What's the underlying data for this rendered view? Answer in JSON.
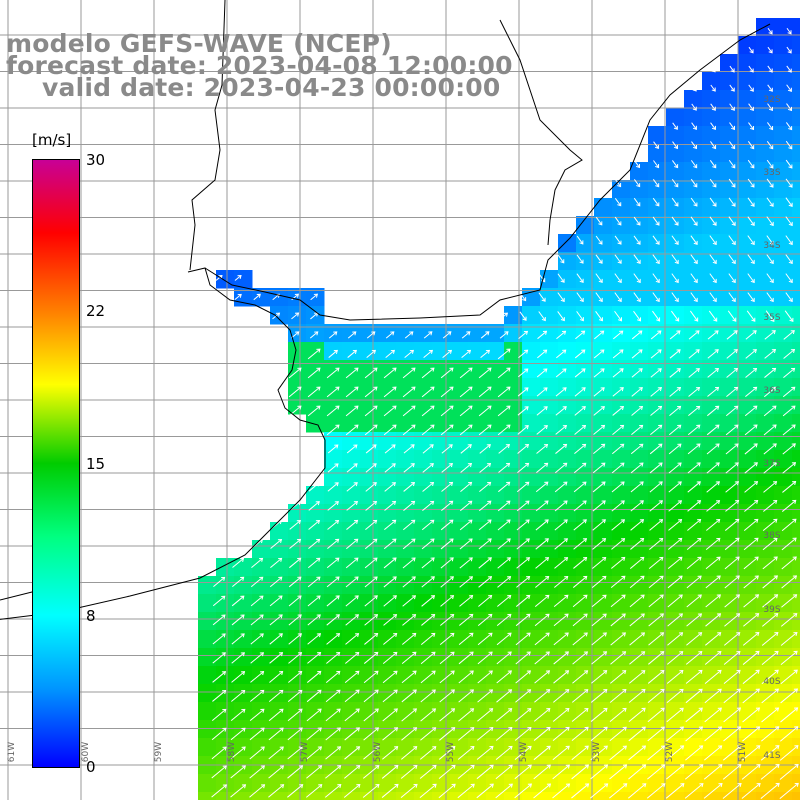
{
  "title": {
    "line1": "modelo GEFS-WAVE (NCEP)",
    "line2": "forecast date: 2023-04-08 12:00:00",
    "line3": "valid date: 2023-04-23 00:00:00"
  },
  "colorbar": {
    "units": "[m/s]",
    "ticks": [
      {
        "label": "30"
      },
      {
        "label": "22"
      },
      {
        "label": "15"
      },
      {
        "label": "8"
      },
      {
        "label": "0"
      }
    ],
    "colors": [
      "#0000ff",
      "#0096ff",
      "#00ffff",
      "#00ff80",
      "#00cc00",
      "#ffff00",
      "#ff8000",
      "#ff0000",
      "#c80096"
    ]
  },
  "grid": {
    "lat_labels": [
      "32S",
      "33S",
      "34S",
      "35S",
      "36S",
      "37S",
      "38S",
      "39S",
      "40S",
      "41S"
    ],
    "lon_labels": [
      "61W",
      "60W",
      "59W",
      "58W",
      "57W",
      "56W",
      "55W",
      "54W",
      "53W",
      "52W",
      "51W"
    ]
  },
  "colors": {
    "land": "#ffffff",
    "coastline": "#000000",
    "gridline": "#999999",
    "arrows": "#ffffff",
    "title_text": "#8a8a8a"
  }
}
